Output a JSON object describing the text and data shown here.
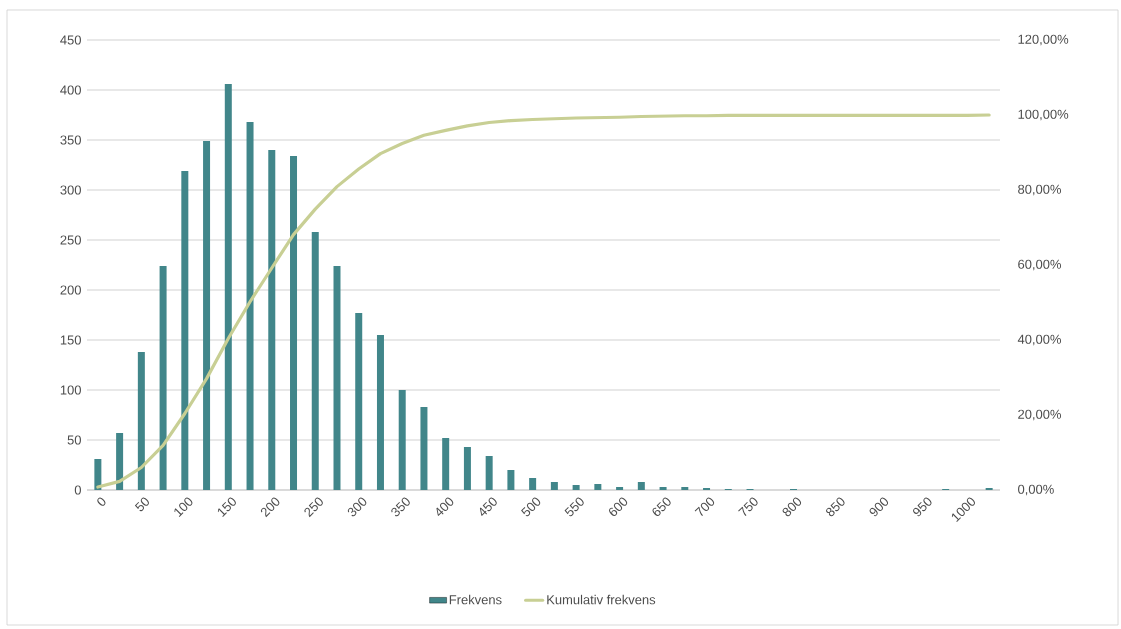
{
  "chart_data": {
    "type": "bar",
    "categories": [
      "0",
      null,
      "50",
      null,
      "100",
      null,
      "150",
      null,
      "200",
      null,
      "250",
      null,
      "300",
      null,
      "350",
      null,
      "400",
      null,
      "450",
      null,
      "500",
      null,
      "550",
      null,
      "600",
      null,
      "650",
      null,
      "700",
      null,
      "750",
      null,
      "800",
      null,
      "850",
      null,
      "900",
      null,
      "950",
      null,
      "1000",
      null
    ],
    "series": [
      {
        "name": "Frekvens",
        "color": "#41868a",
        "values": [
          31,
          57,
          138,
          224,
          319,
          349,
          406,
          368,
          340,
          334,
          258,
          224,
          177,
          155,
          100,
          83,
          52,
          43,
          34,
          20,
          12,
          8,
          5,
          6,
          3,
          8,
          3,
          3,
          2,
          1,
          1,
          0,
          1,
          0,
          0,
          0,
          0,
          0,
          0,
          1,
          0,
          2
        ]
      },
      {
        "name": "Kumulativ frekvens",
        "type": "line",
        "axis": "y2",
        "color": "#c8cf94",
        "values": [
          0.8,
          2.3,
          6.0,
          11.9,
          20.4,
          29.7,
          40.4,
          50.2,
          59.2,
          68.1,
          74.9,
          80.9,
          85.6,
          89.7,
          92.4,
          94.6,
          95.9,
          97.1,
          98.0,
          98.5,
          98.8,
          99.0,
          99.2,
          99.3,
          99.4,
          99.6,
          99.7,
          99.8,
          99.8,
          99.9,
          99.9,
          99.9,
          99.9,
          99.9,
          99.9,
          99.9,
          99.9,
          99.9,
          99.9,
          99.9,
          99.9,
          100
        ]
      }
    ],
    "ylim": [
      0,
      450
    ],
    "yticks": [
      0,
      50,
      100,
      150,
      200,
      250,
      300,
      350,
      400,
      450
    ],
    "y2lim": [
      0,
      120
    ],
    "y2ticks": [
      {
        "value": 0,
        "label": "0,00%"
      },
      {
        "value": 20,
        "label": "20,00%"
      },
      {
        "value": 40,
        "label": "40,00%"
      },
      {
        "value": 60,
        "label": "60,00%"
      },
      {
        "value": 80,
        "label": "80,00%"
      },
      {
        "value": 100,
        "label": "100,00%"
      },
      {
        "value": 120,
        "label": "120,00%"
      }
    ],
    "grid": "y",
    "legend": "bottom"
  }
}
